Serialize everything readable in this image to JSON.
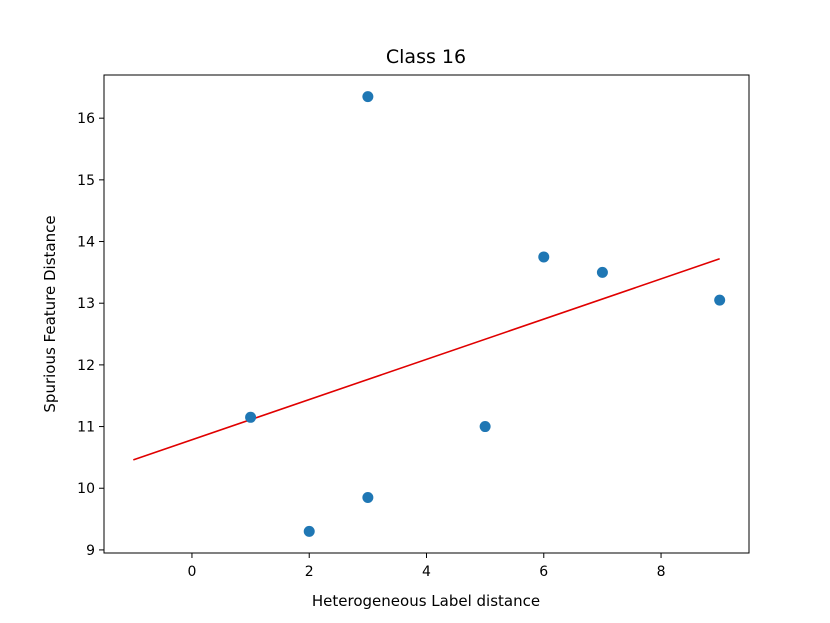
{
  "chart_data": {
    "type": "scatter",
    "title": "Class 16",
    "xlabel": "Heterogeneous Label distance",
    "ylabel": "Spurious Feature Distance",
    "xlim": [
      -1.5,
      9.5
    ],
    "ylim": [
      8.95,
      16.7
    ],
    "xticks": [
      0,
      2,
      4,
      6,
      8
    ],
    "yticks": [
      9,
      10,
      11,
      12,
      13,
      14,
      15,
      16
    ],
    "grid": false,
    "series": [
      {
        "type": "scatter",
        "color": "#1f77b4",
        "points": [
          {
            "x": 1,
            "y": 11.15
          },
          {
            "x": 2,
            "y": 9.3
          },
          {
            "x": 3,
            "y": 16.35
          },
          {
            "x": 3,
            "y": 9.85
          },
          {
            "x": 5,
            "y": 11.0
          },
          {
            "x": 6,
            "y": 13.75
          },
          {
            "x": 7,
            "y": 13.5
          },
          {
            "x": 9,
            "y": 13.05
          }
        ]
      },
      {
        "type": "line",
        "color": "#e00000",
        "points": [
          {
            "x": -1,
            "y": 10.46
          },
          {
            "x": 9,
            "y": 13.72
          }
        ]
      }
    ]
  }
}
